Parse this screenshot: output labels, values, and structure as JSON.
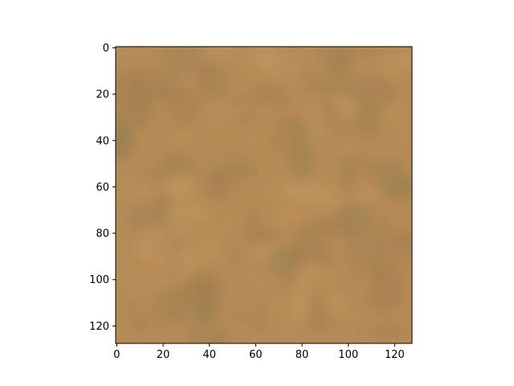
{
  "chart_data": {
    "type": "heatmap",
    "title": "",
    "xlabel": "",
    "ylabel": "",
    "image_width": 128,
    "image_height": 128,
    "xlim": [
      -0.5,
      127.5
    ],
    "ylim": [
      127.5,
      -0.5
    ],
    "y_axis_inverted": true,
    "grid": false,
    "legend": "none",
    "xticks": [
      0,
      20,
      40,
      60,
      80,
      100,
      120
    ],
    "yticks": [
      0,
      20,
      40,
      60,
      80,
      100,
      120
    ],
    "base_color": "#b78b57",
    "texture_colors": {
      "light": "#c39660",
      "dark": "#a07f4e",
      "olive": "#9a8050"
    }
  }
}
